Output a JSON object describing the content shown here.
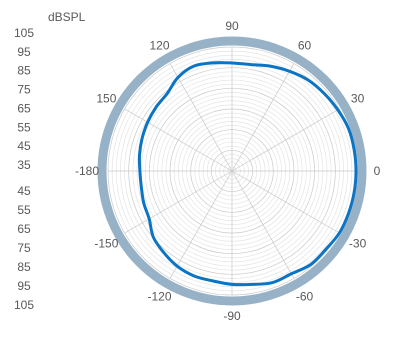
{
  "chart_data": {
    "type": "line",
    "subtype": "polar",
    "unit_label": "dBSPL",
    "radial_scale_labels_top": [
      "105",
      "95",
      "85",
      "75",
      "65",
      "55",
      "45",
      "35"
    ],
    "radial_scale_labels_bottom": [
      "45",
      "55",
      "65",
      "75",
      "85",
      "95",
      "105"
    ],
    "angle_tick_labels": [
      "90",
      "60",
      "30",
      "0",
      "-30",
      "-60",
      "-90",
      "-120",
      "-150",
      "-180",
      "150",
      "120"
    ],
    "angle_ticks_deg": [
      90,
      60,
      30,
      0,
      -30,
      -60,
      -90,
      -120,
      -150,
      180,
      150,
      120
    ],
    "radial_range_db": [
      35,
      105
    ],
    "grid": true,
    "colors": {
      "series": "#0b74c4",
      "ring": "#97b2c6",
      "grid_major": "#c9c9c9",
      "grid_minor": "#e4e4e4",
      "text": "#595959"
    },
    "series": [
      {
        "angles_deg": [
          -180,
          -170,
          -160,
          -150,
          -140,
          -130,
          -120,
          -110,
          -100,
          -90,
          -80,
          -70,
          -60,
          -50,
          -40,
          -30,
          -20,
          -10,
          0,
          10,
          20,
          30,
          40,
          50,
          60,
          70,
          80,
          90,
          100,
          110,
          120,
          130,
          140,
          150,
          160,
          170,
          180
        ],
        "values_db": [
          87,
          87,
          88,
          89,
          93,
          95,
          97,
          98,
          98,
          99,
          100,
          102,
          102,
          104,
          104,
          105,
          105,
          105,
          105,
          105,
          105,
          104,
          103,
          102,
          100,
          98,
          96,
          96,
          97,
          98,
          96,
          92,
          91,
          90,
          89,
          88,
          87
        ]
      }
    ]
  }
}
